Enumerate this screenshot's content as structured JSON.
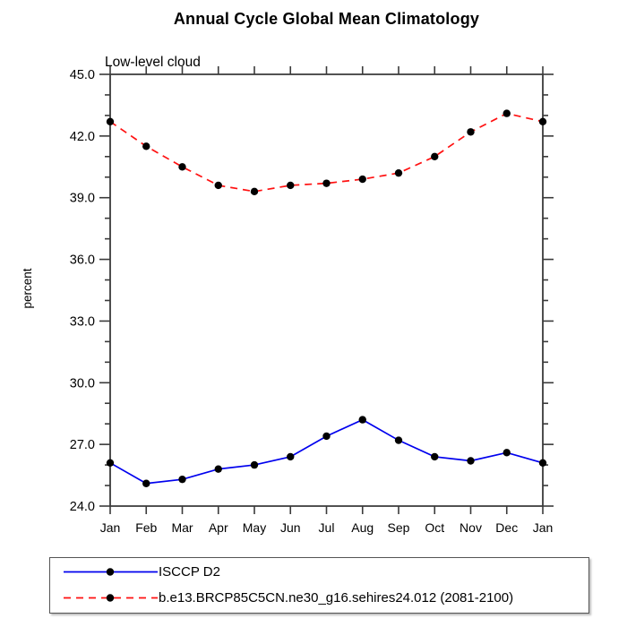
{
  "title": "Annual Cycle Global Mean Climatology",
  "subtitle": "Low-level cloud",
  "chart_data": {
    "type": "line",
    "title": "Annual Cycle Global Mean Climatology",
    "subtitle": "Low-level cloud",
    "xlabel": "",
    "ylabel": "percent",
    "categories": [
      "Jan",
      "Feb",
      "Mar",
      "Apr",
      "May",
      "Jun",
      "Jul",
      "Aug",
      "Sep",
      "Oct",
      "Nov",
      "Dec",
      "Jan"
    ],
    "ylim": [
      24.0,
      45.0
    ],
    "ytick_interval": 3.0,
    "yminor_interval": 1.0,
    "ytick_labels": [
      "24.0",
      "27.0",
      "30.0",
      "33.0",
      "36.0",
      "39.0",
      "42.0",
      "45.0"
    ],
    "grid": false,
    "legend_position": "bottom-left-box",
    "axis_color": "#3a3a3a",
    "marker_color": "#000000",
    "series": [
      {
        "name": "ISCCP D2",
        "color": "#0000ee",
        "dash": "solid",
        "values": [
          26.1,
          25.1,
          25.3,
          25.8,
          26.0,
          26.4,
          27.4,
          28.2,
          27.2,
          26.4,
          26.2,
          26.6,
          26.1
        ]
      },
      {
        "name": "b.e13.BRCP85C5CN.ne30_g16.sehires24.012 (2081-2100)",
        "color": "#ff1111",
        "dash": "dashed",
        "values": [
          42.7,
          41.5,
          40.5,
          39.6,
          39.3,
          39.6,
          39.7,
          39.9,
          40.2,
          41.0,
          42.2,
          43.1,
          42.7
        ]
      }
    ]
  }
}
